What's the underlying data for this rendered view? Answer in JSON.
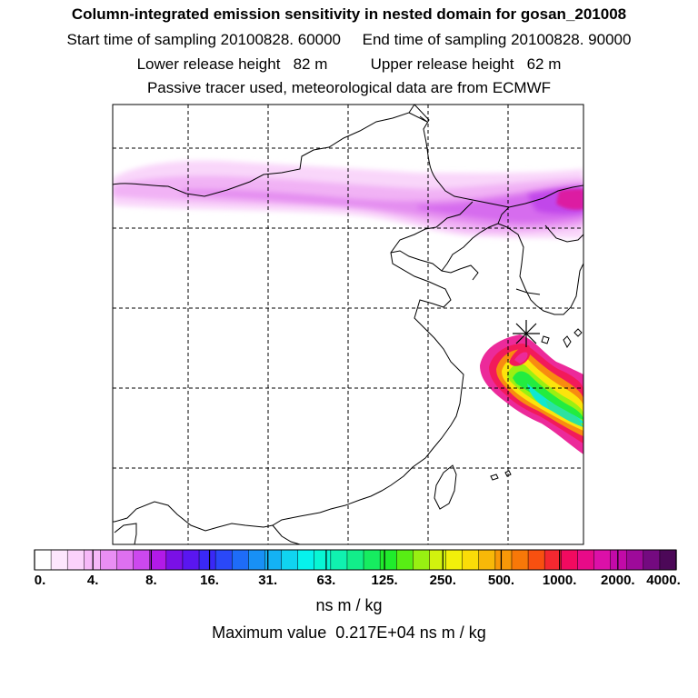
{
  "header": {
    "title": "Column-integrated emission sensitivity in nested domain for gosan_201008",
    "line2": "Start time of sampling 20100828. 60000     End time of sampling 20100828. 90000",
    "line3": "Lower release height   82 m          Upper release height   62 m",
    "line4": "Passive tracer used, meteorological data are from ECMWF"
  },
  "colorbar": {
    "labels": [
      "0.",
      "4.",
      "8.",
      "16.",
      "31.",
      "63.",
      "125.",
      "250.",
      "500.",
      "1000.",
      "2000.",
      "4000."
    ],
    "colors": [
      "#ffffff",
      "#fde6fd",
      "#fbd2fb",
      "#f6b8f8",
      "#e98ef4",
      "#de70f0",
      "#cc48ee",
      "#b21ae8",
      "#7a10e6",
      "#5a16f0",
      "#3a28f6",
      "#2a48f8",
      "#1e6cf8",
      "#1890f6",
      "#14b2f4",
      "#10d4f0",
      "#06f2ec",
      "#08f6d4",
      "#10f2b0",
      "#12ee8a",
      "#16ec60",
      "#20ec2c",
      "#58ee14",
      "#98f012",
      "#d2f20e",
      "#f2f00a",
      "#fadc08",
      "#f8b808",
      "#f89808",
      "#f87808",
      "#f85010",
      "#f42830",
      "#f20a60",
      "#e80a88",
      "#dc10a8",
      "#c20aa8",
      "#9e0a9a",
      "#740a80",
      "#4c0858"
    ],
    "unit": "ns m / kg"
  },
  "max_value_text": "Maximum value  0.217E+04 ns m / kg",
  "map": {
    "receptor": "gosan",
    "max_value": 2170,
    "unit": "ns m / kg"
  }
}
